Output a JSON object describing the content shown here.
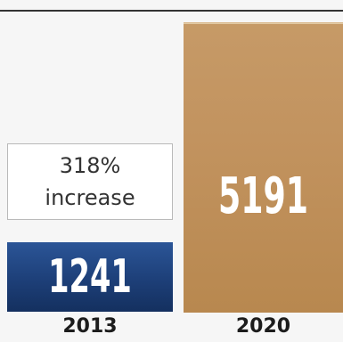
{
  "chart_data": {
    "type": "bar",
    "categories": [
      "2013",
      "2020"
    ],
    "values": [
      1241,
      5191
    ],
    "data_labels": [
      "1241",
      "5191"
    ],
    "annotation": {
      "lines": [
        "318%",
        "increase"
      ]
    },
    "colors": [
      "#1d3f78",
      "#c2935f"
    ],
    "title": "",
    "xlabel": "",
    "ylabel": ""
  }
}
